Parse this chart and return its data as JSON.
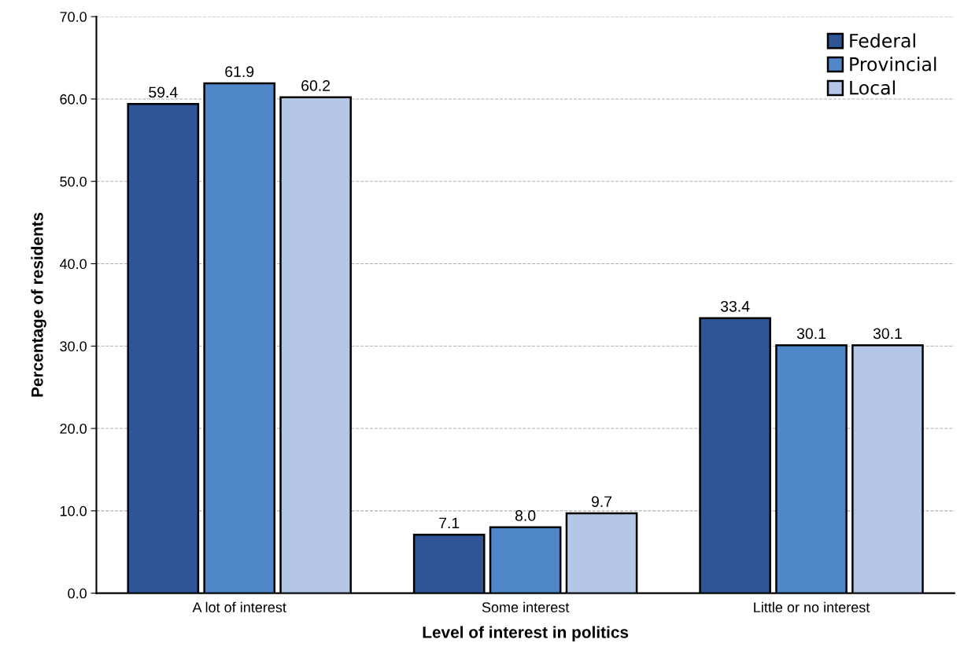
{
  "chart_data": {
    "type": "bar",
    "xlabel": "Level of interest in politics",
    "ylabel": "Percentage of residents",
    "categories": [
      "A lot of interest",
      "Some interest",
      "Little or no interest"
    ],
    "series": [
      {
        "name": "Federal",
        "color": "#2f5597",
        "values": [
          59.4,
          7.1,
          33.4
        ],
        "value_labels": [
          "59.4",
          "7.1",
          "33.4"
        ]
      },
      {
        "name": "Provincial",
        "color": "#4f87c8",
        "values": [
          61.9,
          8.0,
          30.1
        ],
        "value_labels": [
          "61.9",
          "8.0",
          "30.1"
        ]
      },
      {
        "name": "Local",
        "color": "#b4c7e7",
        "values": [
          60.2,
          9.7,
          30.1
        ],
        "value_labels": [
          "60.2",
          "9.7",
          "30.1"
        ]
      }
    ],
    "ylim": [
      0,
      70
    ],
    "yticks": [
      {
        "value": 0,
        "label": "0.0"
      },
      {
        "value": 10,
        "label": "10.0"
      },
      {
        "value": 20,
        "label": "20.0"
      },
      {
        "value": 30,
        "label": "30.0"
      },
      {
        "value": 40,
        "label": "40.0"
      },
      {
        "value": 50,
        "label": "50.0"
      },
      {
        "value": 60,
        "label": "60.0"
      },
      {
        "value": 70,
        "label": "70.0"
      }
    ],
    "grid": "y",
    "legend": "top right"
  }
}
